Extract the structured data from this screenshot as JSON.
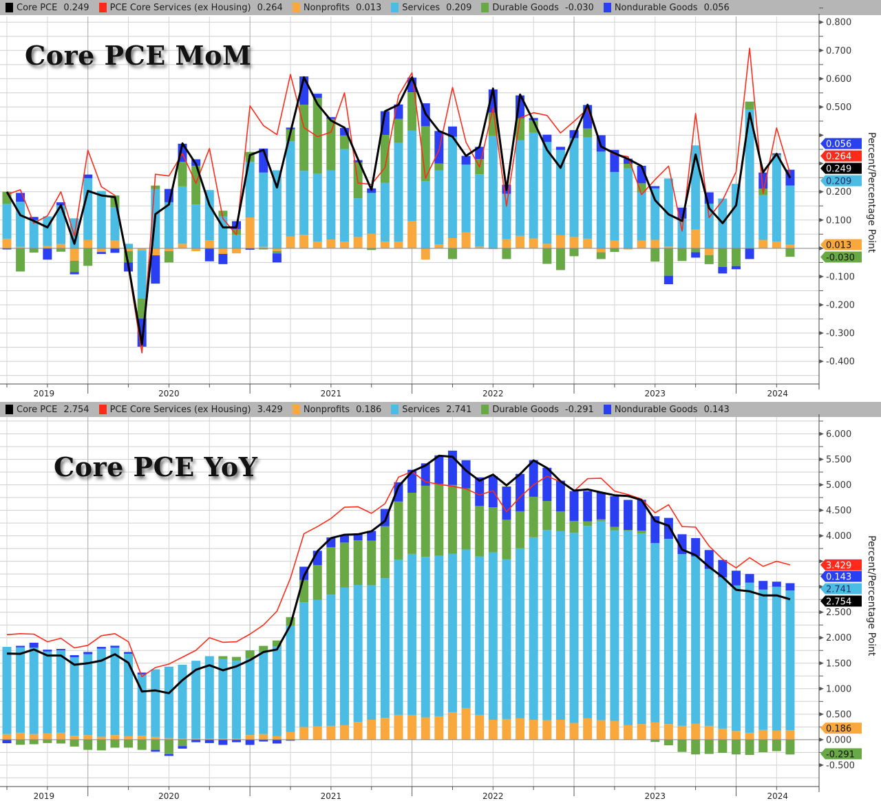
{
  "chart_data": [
    {
      "type": "bar",
      "stacked": true,
      "title": "Core PCE MoM",
      "ylabel": "Percent/Percentage Point",
      "ylim": [
        -0.48,
        0.82
      ],
      "yticks": [
        -0.4,
        -0.3,
        -0.2,
        -0.1,
        0,
        0.1,
        0.2,
        0.3,
        0.4,
        0.5,
        0.6,
        0.7,
        0.8
      ],
      "ytick_labels": [
        "-0.400",
        "-0.300",
        "-0.200",
        "-0.100",
        "",
        "0.100",
        "0.200",
        "",
        "",
        "0.500",
        "0.600",
        "0.700",
        "0.800"
      ],
      "xtick_labels": [
        "2019",
        "2020",
        "2021",
        "2022",
        "2023",
        "2024"
      ],
      "grid": true,
      "legend_position": "top",
      "categories": [
        "2019-06",
        "2019-07",
        "2019-08",
        "2019-09",
        "2019-10",
        "2019-11",
        "2019-12",
        "2020-01",
        "2020-02",
        "2020-03",
        "2020-04",
        "2020-05",
        "2020-06",
        "2020-07",
        "2020-08",
        "2020-09",
        "2020-10",
        "2020-11",
        "2020-12",
        "2021-01",
        "2021-02",
        "2021-03",
        "2021-04",
        "2021-05",
        "2021-06",
        "2021-07",
        "2021-08",
        "2021-09",
        "2021-10",
        "2021-11",
        "2021-12",
        "2022-01",
        "2022-02",
        "2022-03",
        "2022-04",
        "2022-05",
        "2022-06",
        "2022-07",
        "2022-08",
        "2022-09",
        "2022-10",
        "2022-11",
        "2022-12",
        "2023-01",
        "2023-02",
        "2023-03",
        "2023-04",
        "2023-05",
        "2023-06",
        "2023-07",
        "2023-08",
        "2023-09",
        "2023-10",
        "2023-11",
        "2023-12",
        "2024-01",
        "2024-02",
        "2024-03",
        "2024-04"
      ],
      "series": [
        {
          "name": "Core PCE",
          "kind": "line",
          "color": "#000000",
          "last_label": "0.249",
          "values": [
            0.2,
            0.117,
            0.097,
            0.074,
            0.152,
            0.016,
            0.203,
            0.187,
            0.181,
            -0.06,
            -0.34,
            0.121,
            0.155,
            0.371,
            0.298,
            0.153,
            0.074,
            0.074,
            0.33,
            0.348,
            0.215,
            0.41,
            0.605,
            0.51,
            0.452,
            0.427,
            0.315,
            0.207,
            0.485,
            0.508,
            0.605,
            0.476,
            0.415,
            0.395,
            0.327,
            0.359,
            0.565,
            0.206,
            0.544,
            0.45,
            0.348,
            0.285,
            0.396,
            0.508,
            0.36,
            0.336,
            0.316,
            0.291,
            0.17,
            0.12,
            0.097,
            0.332,
            0.142,
            0.089,
            0.152,
            0.479,
            0.269,
            0.334,
            0.249
          ]
        },
        {
          "name": "PCE Core Services (ex Housing)",
          "kind": "line",
          "color": "#ff2a1a",
          "last_label": "0.264",
          "values": [
            0.19,
            0.207,
            0.089,
            0.115,
            0.2,
            0.044,
            0.347,
            0.218,
            0.187,
            -0.07,
            -0.37,
            0.262,
            0.256,
            0.335,
            0.23,
            0.353,
            0.105,
            0.048,
            0.504,
            0.434,
            0.402,
            0.615,
            0.427,
            0.395,
            0.411,
            0.55,
            0.231,
            0.226,
            0.286,
            0.54,
            0.621,
            0.248,
            0.347,
            0.569,
            0.375,
            0.288,
            0.496,
            0.149,
            0.461,
            0.48,
            0.47,
            0.408,
            0.449,
            0.494,
            0.36,
            0.332,
            0.324,
            0.19,
            0.243,
            0.291,
            0.061,
            0.477,
            0.109,
            0.17,
            0.271,
            0.708,
            0.194,
            0.426,
            0.264
          ]
        },
        {
          "name": "Nonprofits",
          "kind": "bar",
          "color": "#f9a83e",
          "last_label": "0.013",
          "values": [
            0.034,
            0.005,
            0,
            0.008,
            0.015,
            -0.044,
            0.03,
            -0.013,
            0.027,
            -0.01,
            -0.008,
            -0.025,
            -0.01,
            0.016,
            -0.01,
            0.028,
            -0.02,
            -0.018,
            0.109,
            0.005,
            -0.01,
            0.042,
            0.048,
            0.024,
            0.031,
            0.024,
            0.04,
            0.051,
            0.024,
            0.024,
            0.097,
            -0.04,
            0.014,
            0.036,
            0.056,
            0.006,
            -0.003,
            0.032,
            0.044,
            0.035,
            0.016,
            0.046,
            0.04,
            0.034,
            -0.014,
            0.027,
            -0.004,
            0.027,
            0.03,
            0.006,
            0,
            0.066,
            -0.024,
            0,
            0,
            0,
            0.03,
            0.024,
            0.013
          ]
        },
        {
          "name": "Services",
          "kind": "bar",
          "color": "#4bbce3",
          "last_label": "0.209",
          "values": [
            0.123,
            0.16,
            0.1,
            0.105,
            0.137,
            0.106,
            0.218,
            0.203,
            0.118,
            0.016,
            -0.17,
            0.21,
            0.163,
            0.203,
            0.155,
            0.178,
            0.113,
            0.048,
            0.197,
            0.263,
            0.276,
            0.337,
            0.226,
            0.24,
            0.245,
            0.327,
            0.137,
            0.145,
            0.208,
            0.349,
            0.32,
            0.238,
            0.262,
            0.359,
            0.24,
            0.256,
            0.397,
            0.161,
            0.339,
            0.374,
            0.36,
            0.302,
            0.35,
            0.358,
            0.342,
            0.243,
            0.283,
            0.171,
            0.182,
            0.241,
            0.105,
            0.298,
            0.158,
            0.176,
            0.228,
            0.491,
            0.158,
            0.304,
            0.209
          ]
        },
        {
          "name": "Durable Goods",
          "kind": "bar",
          "color": "#68a845",
          "last_label": "-0.030",
          "values": [
            0.043,
            -0.082,
            -0.015,
            0,
            -0.012,
            -0.04,
            -0.062,
            0,
            0.042,
            -0.04,
            -0.07,
            0.012,
            -0.04,
            0.087,
            0.137,
            0,
            0.02,
            0.02,
            0.035,
            -0.004,
            -0.008,
            0.042,
            0.234,
            0.268,
            0.182,
            0.048,
            0.127,
            -0.006,
            0.169,
            0.085,
            0.135,
            0.194,
            0.024,
            -0.038,
            0,
            0.054,
            0.083,
            -0.038,
            0.077,
            0.044,
            -0.055,
            -0.077,
            -0.028,
            0.032,
            -0.024,
            -0.013,
            0.016,
            0.032,
            -0.047,
            -0.097,
            -0.045,
            -0.014,
            -0.032,
            -0.066,
            -0.063,
            0.028,
            0.023,
            0.004,
            -0.03
          ]
        },
        {
          "name": "Nondurable Goods",
          "kind": "bar",
          "color": "#2b3ff2",
          "last_label": "0.056",
          "values": [
            -0.004,
            0.031,
            0.011,
            -0.04,
            0.011,
            -0.008,
            0.013,
            -0.007,
            -0.016,
            -0.032,
            -0.1,
            -0.1,
            0.047,
            0.064,
            0.023,
            -0.046,
            -0.036,
            0.028,
            -0.005,
            0.085,
            -0.032,
            0.006,
            0.1,
            0.015,
            0.006,
            0.027,
            0.008,
            0.016,
            0.084,
            0.051,
            0.052,
            0.081,
            0.115,
            0.036,
            0.031,
            0.043,
            0.082,
            0.032,
            0.081,
            0.008,
            0.026,
            0.011,
            0.028,
            0.083,
            0.058,
            0.078,
            0.018,
            0.062,
            0.008,
            -0.03,
            0.039,
            -0.019,
            0.04,
            -0.023,
            -0.011,
            -0.038,
            0.057,
            0.004,
            0.056
          ]
        }
      ]
    },
    {
      "type": "bar",
      "stacked": true,
      "title": "Core PCE YoY",
      "ylabel": "Percent/Percentage Point",
      "ylim": [
        -0.92,
        6.33
      ],
      "yticks": [
        -0.5,
        0,
        0.5,
        1,
        1.5,
        2,
        2.5,
        3,
        3.5,
        4,
        4.5,
        5,
        5.5,
        6
      ],
      "ytick_labels": [
        "-0.500",
        "0.000",
        "0.500",
        "1.000",
        "1.500",
        "2.000",
        "2.500",
        "",
        "",
        "4.000",
        "4.500",
        "5.000",
        "5.500",
        "6.000"
      ],
      "xtick_labels": [
        "2019",
        "2020",
        "2021",
        "2022",
        "2023",
        "2024"
      ],
      "grid": true,
      "legend_position": "top",
      "categories": [
        "2019-06",
        "2019-07",
        "2019-08",
        "2019-09",
        "2019-10",
        "2019-11",
        "2019-12",
        "2020-01",
        "2020-02",
        "2020-03",
        "2020-04",
        "2020-05",
        "2020-06",
        "2020-07",
        "2020-08",
        "2020-09",
        "2020-10",
        "2020-11",
        "2020-12",
        "2021-01",
        "2021-02",
        "2021-03",
        "2021-04",
        "2021-05",
        "2021-06",
        "2021-07",
        "2021-08",
        "2021-09",
        "2021-10",
        "2021-11",
        "2021-12",
        "2022-01",
        "2022-02",
        "2022-03",
        "2022-04",
        "2022-05",
        "2022-06",
        "2022-07",
        "2022-08",
        "2022-09",
        "2022-10",
        "2022-11",
        "2022-12",
        "2023-01",
        "2023-02",
        "2023-03",
        "2023-04",
        "2023-05",
        "2023-06",
        "2023-07",
        "2023-08",
        "2023-09",
        "2023-10",
        "2023-11",
        "2023-12",
        "2024-01",
        "2024-02",
        "2024-03",
        "2024-04"
      ],
      "series": [
        {
          "name": "Core PCE",
          "kind": "line",
          "color": "#000000",
          "last_label": "2.754",
          "values": [
            1.69,
            1.685,
            1.77,
            1.65,
            1.65,
            1.47,
            1.5,
            1.55,
            1.676,
            1.506,
            0.944,
            0.966,
            0.912,
            1.168,
            1.371,
            1.46,
            1.362,
            1.438,
            1.56,
            1.72,
            1.77,
            2.25,
            3.21,
            3.7,
            3.955,
            4.02,
            4.03,
            4.09,
            4.29,
            4.97,
            5.26,
            5.38,
            5.57,
            5.55,
            5.28,
            5.08,
            5.2,
            4.99,
            5.21,
            5.48,
            5.33,
            5.07,
            4.885,
            4.91,
            4.85,
            4.795,
            4.78,
            4.7,
            4.29,
            4.2,
            3.73,
            3.62,
            3.39,
            3.19,
            2.94,
            2.91,
            2.83,
            2.83,
            2.754
          ]
        },
        {
          "name": "PCE Core Services (ex Housing)",
          "kind": "line",
          "color": "#ff2a1a",
          "last_label": "3.429",
          "values": [
            2.06,
            2.08,
            2.07,
            1.92,
            1.99,
            1.8,
            1.85,
            2.04,
            2.08,
            1.92,
            1.236,
            1.416,
            1.483,
            1.618,
            1.753,
            2.0,
            1.91,
            1.92,
            2.07,
            2.25,
            2.52,
            3.17,
            4.04,
            4.18,
            4.34,
            4.56,
            4.57,
            4.44,
            4.63,
            5.15,
            5.26,
            5.06,
            5.01,
            4.97,
            4.92,
            4.8,
            4.885,
            4.47,
            4.76,
            5.0,
            5.17,
            5.06,
            4.876,
            5.12,
            5.13,
            4.876,
            4.81,
            4.72,
            4.45,
            4.61,
            4.18,
            4.17,
            3.8,
            3.54,
            3.37,
            3.57,
            3.4,
            3.5,
            3.429
          ]
        },
        {
          "name": "Nonprofits",
          "kind": "bar",
          "color": "#f9a83e",
          "last_label": "0.186",
          "values": [
            0.11,
            0.135,
            0.11,
            0.126,
            0.135,
            0.076,
            0.09,
            0.058,
            0.09,
            0.067,
            0.076,
            0.054,
            0.03,
            0.02,
            0.02,
            0.02,
            0.02,
            0.02,
            0.09,
            0.11,
            0.067,
            0.148,
            0.247,
            0.26,
            0.27,
            0.283,
            0.346,
            0.39,
            0.427,
            0.485,
            0.485,
            0.436,
            0.458,
            0.54,
            0.62,
            0.485,
            0.39,
            0.404,
            0.418,
            0.39,
            0.382,
            0.39,
            0.328,
            0.418,
            0.382,
            0.369,
            0.283,
            0.306,
            0.337,
            0.306,
            0.27,
            0.315,
            0.27,
            0.216,
            0.17,
            0.135,
            0.19,
            0.18,
            0.186
          ]
        },
        {
          "name": "Services",
          "kind": "bar",
          "color": "#4bbce3",
          "last_label": "2.741",
          "values": [
            1.71,
            1.676,
            1.697,
            1.604,
            1.618,
            1.542,
            1.586,
            1.726,
            1.717,
            1.618,
            1.204,
            1.326,
            1.402,
            1.45,
            1.528,
            1.618,
            1.56,
            1.528,
            1.506,
            1.61,
            1.762,
            2.086,
            2.45,
            2.48,
            2.575,
            2.7,
            2.69,
            2.64,
            2.74,
            3.05,
            3.16,
            3.15,
            3.15,
            3.11,
            3.11,
            3.11,
            3.286,
            3.133,
            3.335,
            3.58,
            3.73,
            3.7,
            3.73,
            3.775,
            3.91,
            3.74,
            3.81,
            3.74,
            3.52,
            3.635,
            3.37,
            3.28,
            3.08,
            2.97,
            2.855,
            2.945,
            2.754,
            2.82,
            2.741
          ]
        },
        {
          "name": "Durable Goods",
          "kind": "bar",
          "color": "#68a845",
          "last_label": "-0.291",
          "values": [
            0,
            -0.1,
            -0.09,
            -0.067,
            -0.076,
            -0.135,
            -0.2,
            -0.21,
            -0.157,
            -0.157,
            -0.2,
            -0.2,
            -0.283,
            -0.126,
            0,
            0,
            0.058,
            0.076,
            0.157,
            0.12,
            0.117,
            0.17,
            0.436,
            0.683,
            0.93,
            0.885,
            0.876,
            0.876,
            1.02,
            1.137,
            1.2,
            1.395,
            1.41,
            1.346,
            1.2,
            0.989,
            0.885,
            0.777,
            0.728,
            0.795,
            0.57,
            0.39,
            0.234,
            0.09,
            0.03,
            0.067,
            0.022,
            0.054,
            -0.045,
            -0.11,
            -0.24,
            -0.29,
            -0.28,
            -0.26,
            -0.29,
            -0.3,
            -0.247,
            -0.225,
            -0.291
          ]
        },
        {
          "name": "Nondurable Goods",
          "kind": "bar",
          "color": "#2b3ff2",
          "last_label": "0.143",
          "values": [
            -0.07,
            0.03,
            0.095,
            0.036,
            0.027,
            0.04,
            0.045,
            0.036,
            0.036,
            0.036,
            0.036,
            -0.036,
            -0.036,
            -0.05,
            -0.05,
            -0.067,
            -0.103,
            -0.05,
            -0.103,
            -0.036,
            -0.076,
            -0.02,
            0.26,
            0.283,
            0.193,
            0.148,
            0.135,
            0.19,
            0.34,
            0.378,
            0.45,
            0.44,
            0.56,
            0.674,
            0.553,
            0.562,
            0.607,
            0.652,
            0.733,
            0.72,
            0.652,
            0.6,
            0.584,
            0.593,
            0.53,
            0.6,
            0.589,
            0.607,
            0.526,
            0.41,
            0.39,
            0.36,
            0.37,
            0.34,
            0.29,
            0.17,
            0.17,
            0.1,
            0.143
          ]
        }
      ]
    }
  ]
}
